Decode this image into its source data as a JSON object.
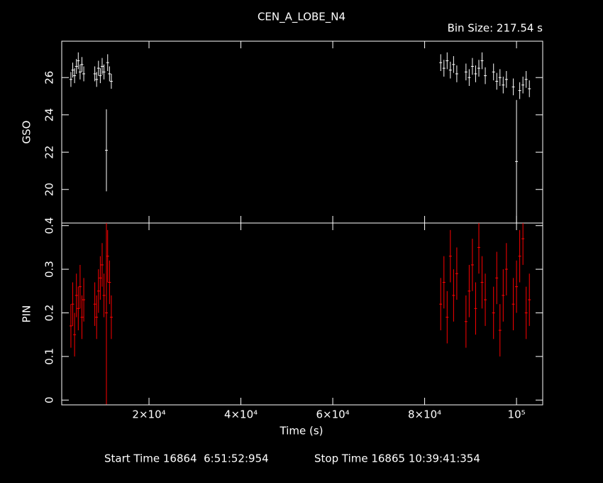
{
  "chart_data": [
    {
      "type": "errorbar",
      "title": "CEN_A_LOBE_N4",
      "subtitle": "Bin Size: 217.54 s",
      "ylabel": "GSO",
      "xlim": [
        1000,
        105700
      ],
      "ylim": [
        18.2,
        27.95
      ],
      "yticks": [
        20,
        22,
        24,
        26
      ],
      "series": [
        {
          "color": "#ffffff",
          "x": [
            3000,
            3400,
            3800,
            4200,
            4600,
            5000,
            5400,
            5800,
            8200,
            8600,
            9000,
            9400,
            9800,
            10200,
            10730,
            11000,
            11400,
            11800,
            83500,
            84200,
            84900,
            85600,
            86300,
            87000,
            89000,
            89700,
            90400,
            91100,
            91800,
            92500,
            93200,
            95000,
            95700,
            96400,
            97100,
            97800,
            99300,
            100000,
            100700,
            101400,
            102100,
            102800
          ],
          "values": [
            25.9,
            26.4,
            26.1,
            26.6,
            26.9,
            26.3,
            26.7,
            26.2,
            26.2,
            25.9,
            26.5,
            26.1,
            26.6,
            26.3,
            22.1,
            26.8,
            26.2,
            25.8,
            26.8,
            26.5,
            26.9,
            26.4,
            26.7,
            26.2,
            26.3,
            26.0,
            26.6,
            26.2,
            26.5,
            26.9,
            26.1,
            26.3,
            25.8,
            26.0,
            25.6,
            25.9,
            25.5,
            21.5,
            25.3,
            25.6,
            25.9,
            25.4
          ],
          "errors": [
            0.4,
            0.4,
            0.4,
            0.4,
            0.45,
            0.4,
            0.4,
            0.4,
            0.4,
            0.4,
            0.4,
            0.4,
            0.45,
            0.4,
            2.2,
            0.45,
            0.4,
            0.4,
            0.45,
            0.45,
            0.45,
            0.45,
            0.45,
            0.45,
            0.45,
            0.45,
            0.45,
            0.45,
            0.45,
            0.45,
            0.45,
            0.45,
            0.45,
            0.45,
            0.45,
            0.45,
            0.45,
            3.3,
            0.45,
            0.45,
            0.45,
            0.45
          ]
        }
      ]
    },
    {
      "type": "errorbar",
      "ylabel": "PIN",
      "xlabel": "Time (s)",
      "xlim": [
        1000,
        105700
      ],
      "ylim": [
        -0.011,
        0.406
      ],
      "yticks": [
        0,
        0.1,
        0.2,
        0.3,
        0.4
      ],
      "xticks": [
        {
          "value": 20000,
          "label": "2×10⁴"
        },
        {
          "value": 40000,
          "label": "4×10⁴"
        },
        {
          "value": 60000,
          "label": "6×10⁴"
        },
        {
          "value": 80000,
          "label": "8×10⁴"
        },
        {
          "value": 100000,
          "label": "10⁵"
        }
      ],
      "series": [
        {
          "color": "#ff0000",
          "x": [
            3000,
            3400,
            3800,
            4200,
            4600,
            5000,
            5400,
            5800,
            8200,
            8600,
            9000,
            9400,
            9800,
            10200,
            10730,
            11000,
            11400,
            11800,
            83500,
            84200,
            84900,
            85600,
            86300,
            87000,
            89000,
            89700,
            90400,
            91100,
            91800,
            92500,
            93200,
            95000,
            95700,
            96400,
            97100,
            97800,
            99300,
            100000,
            100700,
            101400,
            102100,
            102800
          ],
          "values": [
            0.17,
            0.22,
            0.15,
            0.24,
            0.21,
            0.26,
            0.19,
            0.23,
            0.22,
            0.19,
            0.25,
            0.28,
            0.31,
            0.24,
            0.2,
            0.33,
            0.27,
            0.19,
            0.22,
            0.27,
            0.19,
            0.33,
            0.24,
            0.29,
            0.18,
            0.25,
            0.31,
            0.21,
            0.35,
            0.27,
            0.23,
            0.2,
            0.28,
            0.16,
            0.24,
            0.3,
            0.22,
            0.26,
            0.33,
            0.37,
            0.2,
            0.23
          ],
          "errors": [
            0.05,
            0.05,
            0.05,
            0.05,
            0.05,
            0.05,
            0.05,
            0.05,
            0.05,
            0.05,
            0.05,
            0.05,
            0.05,
            0.05,
            0.21,
            0.06,
            0.05,
            0.05,
            0.06,
            0.06,
            0.06,
            0.06,
            0.06,
            0.06,
            0.06,
            0.06,
            0.06,
            0.06,
            0.06,
            0.06,
            0.06,
            0.06,
            0.06,
            0.06,
            0.06,
            0.06,
            0.06,
            0.06,
            0.06,
            0.06,
            0.06,
            0.06
          ]
        }
      ]
    }
  ],
  "footer": {
    "start": "Start Time 16864  6:51:52:954",
    "stop": "Stop Time 16865 10:39:41:354"
  }
}
